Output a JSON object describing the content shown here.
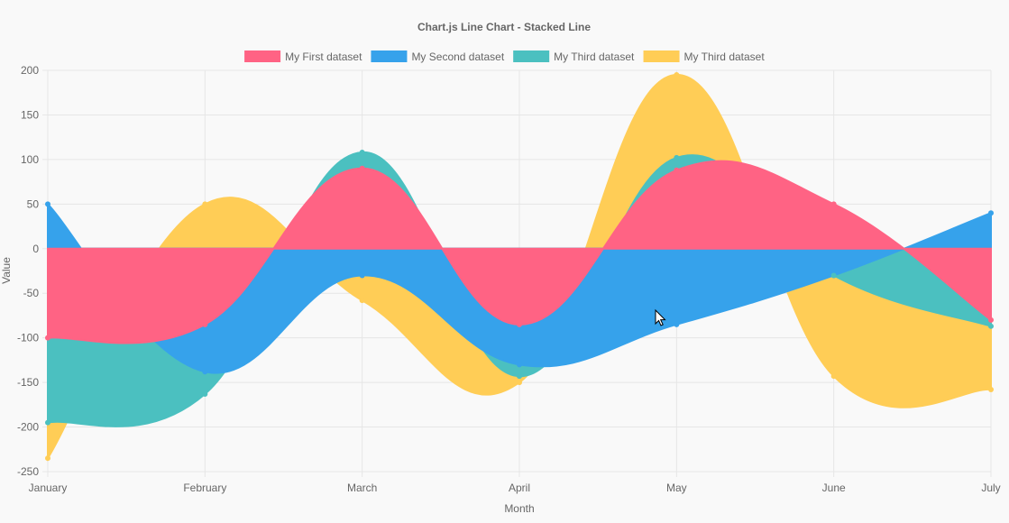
{
  "chart_data": {
    "type": "line",
    "title": "Chart.js Line Chart - Stacked Line",
    "xlabel": "Month",
    "ylabel": "Value",
    "ylim": [
      -250,
      200
    ],
    "ystep": 50,
    "categories": [
      "January",
      "February",
      "March",
      "April",
      "May",
      "June",
      "July"
    ],
    "series": [
      {
        "name": "My First dataset",
        "color": "#ff6384",
        "values": [
          -100,
          -85,
          90,
          -85,
          88,
          50,
          -80
        ]
      },
      {
        "name": "My Second dataset",
        "color": "#36a2eb",
        "values": [
          50,
          -138,
          -30,
          -130,
          -85,
          -30,
          40
        ]
      },
      {
        "name": "My Third dataset",
        "color": "#4bc0c0",
        "values": [
          -195,
          -163,
          108,
          -143,
          102,
          -30,
          -87
        ]
      },
      {
        "name": "My Third dataset",
        "color": "#ffcd56",
        "values": [
          -235,
          50,
          -58,
          -150,
          195,
          -143,
          -158
        ]
      }
    ],
    "legend_position": "top"
  }
}
